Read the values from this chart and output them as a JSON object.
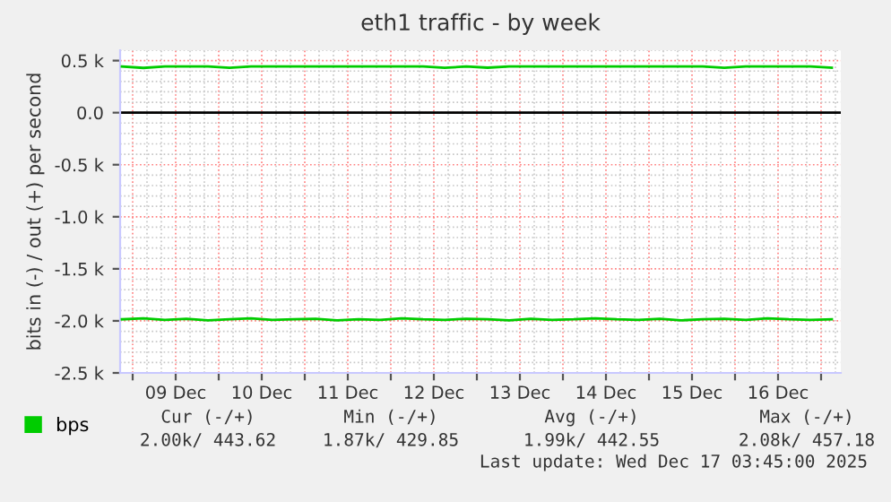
{
  "chart_data": {
    "type": "line",
    "title": "eth1 traffic - by week",
    "ylabel": "bits in (-) / out (+) per second",
    "x": [
      "2025-12-08T21:00",
      "2025-12-09T03:00",
      "2025-12-09T09:00",
      "2025-12-09T15:00",
      "2025-12-09T21:00",
      "2025-12-10T03:00",
      "2025-12-10T09:00",
      "2025-12-10T15:00",
      "2025-12-10T21:00",
      "2025-12-11T03:00",
      "2025-12-11T09:00",
      "2025-12-11T15:00",
      "2025-12-11T21:00",
      "2025-12-12T03:00",
      "2025-12-12T09:00",
      "2025-12-12T15:00",
      "2025-12-12T21:00",
      "2025-12-13T03:00",
      "2025-12-13T09:00",
      "2025-12-13T15:00",
      "2025-12-13T21:00",
      "2025-12-14T03:00",
      "2025-12-14T09:00",
      "2025-12-14T15:00",
      "2025-12-14T21:00",
      "2025-12-15T03:00",
      "2025-12-15T09:00",
      "2025-12-15T15:00",
      "2025-12-15T21:00",
      "2025-12-16T03:00",
      "2025-12-16T09:00",
      "2025-12-16T15:00",
      "2025-12-16T21:00",
      "2025-12-17T03:00"
    ],
    "series": [
      {
        "name": "bps",
        "color": "#00cc00",
        "values": [
          443,
          430,
          443,
          443,
          443,
          431,
          443,
          443,
          443,
          443,
          443,
          443,
          443,
          443,
          443,
          431,
          443,
          432,
          443,
          443,
          443,
          443,
          443,
          443,
          443,
          443,
          443,
          443,
          431,
          443,
          443,
          443,
          443,
          431
        ]
      },
      {
        "color": "#00cc00",
        "values": [
          -1985,
          -1975,
          -1990,
          -1980,
          -1995,
          -1985,
          -1975,
          -1990,
          -1985,
          -1980,
          -1995,
          -1985,
          -1990,
          -1975,
          -1985,
          -1990,
          -1980,
          -1985,
          -1995,
          -1980,
          -1990,
          -1985,
          -1975,
          -1985,
          -1990,
          -1980,
          -1995,
          -1985,
          -1980,
          -1990,
          -1975,
          -1985,
          -1990,
          -1985
        ]
      }
    ],
    "xlim": [
      "2025-12-08T20:30",
      "2025-12-17T05:30"
    ],
    "xticks": [
      {
        "value": "2025-12-09T00:00",
        "label": null
      },
      {
        "value": "2025-12-09T12:00",
        "label": "09 Dec"
      },
      {
        "value": "2025-12-10T00:00",
        "label": null
      },
      {
        "value": "2025-12-10T12:00",
        "label": "10 Dec"
      },
      {
        "value": "2025-12-11T00:00",
        "label": null
      },
      {
        "value": "2025-12-11T12:00",
        "label": "11 Dec"
      },
      {
        "value": "2025-12-12T00:00",
        "label": null
      },
      {
        "value": "2025-12-12T12:00",
        "label": "12 Dec"
      },
      {
        "value": "2025-12-13T00:00",
        "label": null
      },
      {
        "value": "2025-12-13T12:00",
        "label": "13 Dec"
      },
      {
        "value": "2025-12-14T00:00",
        "label": null
      },
      {
        "value": "2025-12-14T12:00",
        "label": "14 Dec"
      },
      {
        "value": "2025-12-15T00:00",
        "label": null
      },
      {
        "value": "2025-12-15T12:00",
        "label": "15 Dec"
      },
      {
        "value": "2025-12-16T00:00",
        "label": null
      },
      {
        "value": "2025-12-16T12:00",
        "label": "16 Dec"
      },
      {
        "value": "2025-12-17T00:00",
        "label": null
      }
    ],
    "ylim": [
      -2500,
      600
    ],
    "yticks": [
      {
        "value": 500,
        "label": "0.5 k"
      },
      {
        "value": 0,
        "label": "0.0"
      },
      {
        "value": -500,
        "label": "-0.5 k"
      },
      {
        "value": -1000,
        "label": "-1.0 k"
      },
      {
        "value": -1500,
        "label": "-1.5 k"
      },
      {
        "value": -2000,
        "label": "-2.0 k"
      },
      {
        "value": -2500,
        "label": "-2.5 k"
      }
    ],
    "ref_lines": [
      {
        "axis": "y",
        "value": 0,
        "color": "#000000"
      }
    ],
    "grid": true,
    "legend": "bottom",
    "marker": "none",
    "line_style": "solid",
    "annotations": [
      "Cur (-/+)",
      "Min (-/+)",
      "Avg (-/+)",
      "Max (-/+)",
      "2.00k/ 443.62",
      "1.87k/ 429.85",
      "1.99k/ 442.55",
      "2.08k/ 457.18",
      "Last update: Wed Dec 17 03:45:00 2025"
    ]
  }
}
